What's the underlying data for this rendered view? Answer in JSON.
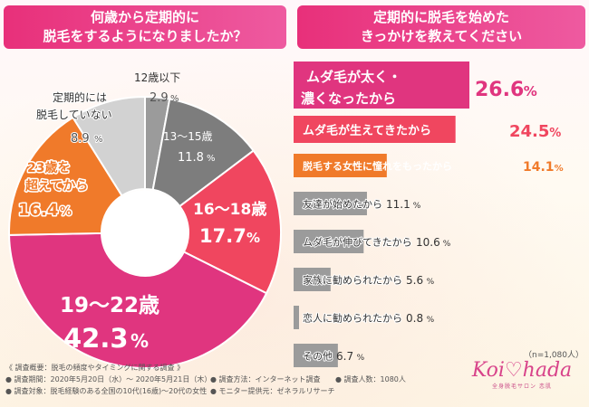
{
  "header_left": {
    "line1": "何歳から定期的に",
    "line2": "脱毛をするようになりましたか？"
  },
  "header_right": {
    "line1": "定期的に脱毛を始めた",
    "line2": "きっかけを教えてください"
  },
  "chart_data": [
    {
      "type": "pie",
      "slices": [
        {
          "label": "12歳以下",
          "value": "2.9",
          "color": "#9b9b9b"
        },
        {
          "label": "13〜15歳",
          "value": "11.8",
          "color": "#7d7d7d"
        },
        {
          "label": "16〜18歳",
          "value": "17.7",
          "color": "#f0465f"
        },
        {
          "label": "19〜22歳",
          "value": "42.3",
          "color": "#e0357f"
        },
        {
          "label": "23歳を超えてから",
          "value": "16.4",
          "color": "#f07a2a"
        },
        {
          "label": "定期的には脱毛していない",
          "value": "8.9",
          "color": "#d2d2d2"
        }
      ],
      "slice_labels": {
        "s1": {
          "line1": "12歳以下",
          "pct": "2.9",
          "unit": "%"
        },
        "s2": {
          "line1": "13〜15歳",
          "pct": "11.8",
          "unit": "%"
        },
        "s3": {
          "line1": "16〜18歳",
          "pct": "17.7",
          "unit": "%"
        },
        "s4": {
          "line1": "19〜22歳",
          "pct": "42.3",
          "unit": "%"
        },
        "s5": {
          "line1": "23歳を",
          "line2": "超えてから",
          "pct": "16.4",
          "unit": "%"
        },
        "s6": {
          "line1": "定期的には",
          "line2": "脱毛していない",
          "pct": "8.9",
          "unit": "%"
        }
      }
    },
    {
      "type": "bar",
      "orientation": "horizontal",
      "categories": [
        "ムダ毛が太く・濃くなったから",
        "ムダ毛が生えてきたから",
        "脱毛する女性に憧れをもったから",
        "友達が始めたから",
        "ムダ毛が伸びてきたから",
        "家族に勧められたから",
        "恋人に勧められたから",
        "その他"
      ],
      "label_lines": [
        [
          "ムダ毛が太く・",
          "濃くなったから"
        ],
        [
          "ムダ毛が生えてきたから"
        ],
        [
          "脱毛する女性に憧れをもったから"
        ],
        [
          "友達が始めたから"
        ],
        [
          "ムダ毛が伸びてきたから"
        ],
        [
          "家族に勧められたから"
        ],
        [
          "恋人に勧められたから"
        ],
        [
          "その他"
        ]
      ],
      "values": [
        26.6,
        24.5,
        14.1,
        11.1,
        10.6,
        5.6,
        0.8,
        6.7
      ],
      "value_labels": [
        "26.6",
        "24.5",
        "14.1",
        "11.1",
        "10.6",
        "5.6",
        "0.8",
        "6.7"
      ],
      "unit": "%",
      "colors": [
        "#e0357f",
        "#f0465f",
        "#f07a2a",
        "#9b9b9b",
        "#9b9b9b",
        "#9b9b9b",
        "#9b9b9b",
        "#9b9b9b"
      ]
    }
  ],
  "sample_size": "（n=1,080人）",
  "footnotes": {
    "title": "《 調査概要：脱毛の頻度やタイミングに関する調査 》",
    "period": "● 調査期間：2020年5月20日（水）〜 2020年5月21日（木）",
    "method": "● 調査方法：インターネット調査",
    "count": "● 調査人数：1080人",
    "target": "● 調査対象：脱毛経験のある全国の10代(16歳)〜20代の女性",
    "provider": "● モニター提供元：ゼネラルリサーチ"
  },
  "logo": {
    "name": "Koi♡hada",
    "tagline": "全身脱毛サロン 恋肌"
  }
}
